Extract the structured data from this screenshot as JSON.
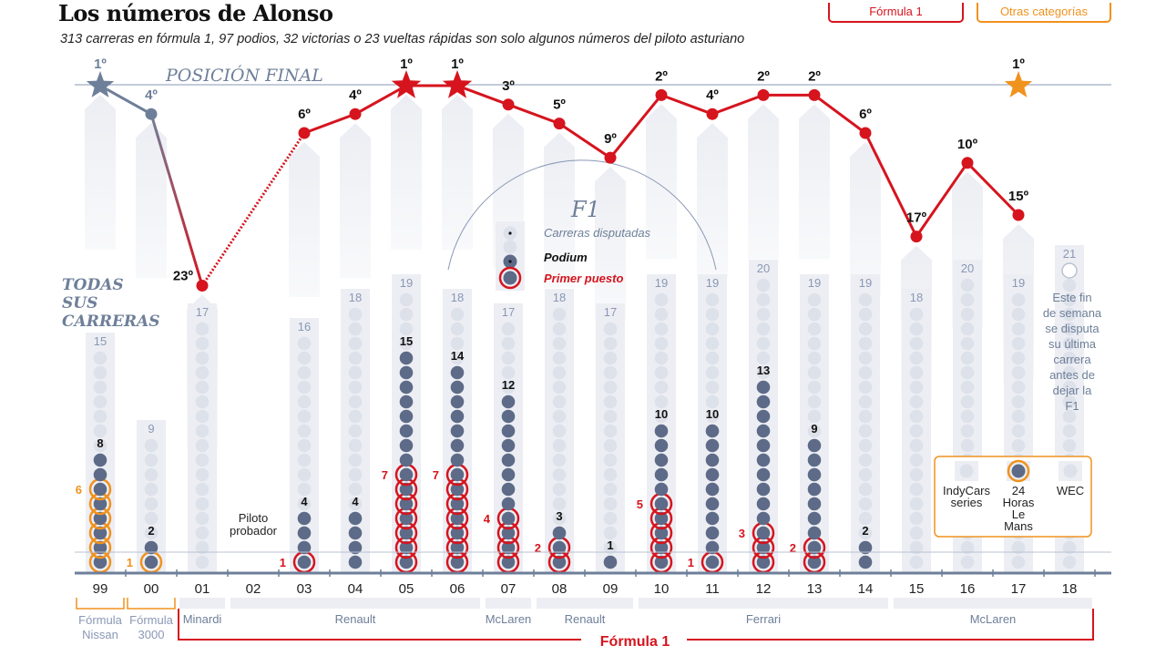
{
  "header": {
    "title": "Los números de Alonso",
    "subtitle": "313 carreras en fórmula 1, 97 podios, 32 victorias o 23 vueltas rápidas son solo algunos números del piloto asturiano",
    "legend_f1": "Fórmula 1",
    "legend_other": "Otras categorías"
  },
  "colors": {
    "f1": "#d6141e",
    "other": "#f0921e",
    "line_other": "#6e7f99",
    "dot": "#5d6b88",
    "dot_light": "#dde1ea",
    "column": "#eceef3",
    "axis": "#6e7f99",
    "section_title": "#6e7f99"
  },
  "chart_data": {
    "type": "line+dot-matrix",
    "final_position_title": "POSICIÓN FINAL",
    "races_title": [
      "TODAS",
      "SUS",
      "CARRERAS"
    ],
    "years": [
      "99",
      "00",
      "01",
      "02",
      "03",
      "04",
      "05",
      "06",
      "07",
      "08",
      "09",
      "10",
      "11",
      "12",
      "13",
      "14",
      "15",
      "16",
      "17",
      "18"
    ],
    "final_position": [
      {
        "year": "99",
        "pos": 1,
        "label": "1º",
        "category": "other",
        "star": true
      },
      {
        "year": "00",
        "pos": 4,
        "label": "4º",
        "category": "other"
      },
      {
        "year": "01",
        "pos": 23,
        "label": "23º",
        "category": "f1"
      },
      {
        "year": "03",
        "pos": 6,
        "label": "6º",
        "category": "f1"
      },
      {
        "year": "04",
        "pos": 4,
        "label": "4º",
        "category": "f1"
      },
      {
        "year": "05",
        "pos": 1,
        "label": "1º",
        "category": "f1",
        "star": true
      },
      {
        "year": "06",
        "pos": 1,
        "label": "1º",
        "category": "f1",
        "star": true
      },
      {
        "year": "07",
        "pos": 3,
        "label": "3º",
        "category": "f1"
      },
      {
        "year": "08",
        "pos": 5,
        "label": "5º",
        "category": "f1"
      },
      {
        "year": "09",
        "pos": 9,
        "label": "9º",
        "category": "f1"
      },
      {
        "year": "10",
        "pos": 2,
        "label": "2º",
        "category": "f1"
      },
      {
        "year": "11",
        "pos": 4,
        "label": "4º",
        "category": "f1"
      },
      {
        "year": "12",
        "pos": 2,
        "label": "2º",
        "category": "f1"
      },
      {
        "year": "13",
        "pos": 2,
        "label": "2º",
        "category": "f1"
      },
      {
        "year": "14",
        "pos": 6,
        "label": "6º",
        "category": "f1"
      },
      {
        "year": "15",
        "pos": 17,
        "label": "17º",
        "category": "f1"
      },
      {
        "year": "16",
        "pos": 10,
        "label": "10º",
        "category": "f1"
      },
      {
        "year": "17",
        "pos": 15,
        "label": "15º",
        "category": "f1"
      },
      {
        "year": "17",
        "pos": 1,
        "label": "1º",
        "category": "other",
        "star": true
      }
    ],
    "seasons": [
      {
        "year": "99",
        "races": 15,
        "podiums": 8,
        "wins": 6,
        "cat": "other"
      },
      {
        "year": "00",
        "races": 9,
        "podiums": 2,
        "wins": 1,
        "cat": "other"
      },
      {
        "year": "01",
        "races": 17,
        "podiums": 0,
        "wins": 0,
        "cat": "f1"
      },
      {
        "year": "02",
        "races": 0,
        "podiums": 0,
        "wins": 0,
        "cat": "f1",
        "note": "Piloto probador"
      },
      {
        "year": "03",
        "races": 16,
        "podiums": 4,
        "wins": 1,
        "cat": "f1"
      },
      {
        "year": "04",
        "races": 18,
        "podiums": 4,
        "wins": 0,
        "cat": "f1"
      },
      {
        "year": "05",
        "races": 19,
        "podiums": 15,
        "wins": 7,
        "cat": "f1"
      },
      {
        "year": "06",
        "races": 18,
        "podiums": 14,
        "wins": 7,
        "cat": "f1"
      },
      {
        "year": "07",
        "races": 17,
        "podiums": 12,
        "wins": 4,
        "cat": "f1"
      },
      {
        "year": "08",
        "races": 18,
        "podiums": 3,
        "wins": 2,
        "cat": "f1"
      },
      {
        "year": "09",
        "races": 17,
        "podiums": 1,
        "wins": 0,
        "cat": "f1"
      },
      {
        "year": "10",
        "races": 19,
        "podiums": 10,
        "wins": 5,
        "cat": "f1"
      },
      {
        "year": "11",
        "races": 19,
        "podiums": 10,
        "wins": 1,
        "cat": "f1"
      },
      {
        "year": "12",
        "races": 20,
        "podiums": 13,
        "wins": 3,
        "cat": "f1"
      },
      {
        "year": "13",
        "races": 19,
        "podiums": 9,
        "wins": 2,
        "cat": "f1"
      },
      {
        "year": "14",
        "races": 19,
        "podiums": 2,
        "wins": 0,
        "cat": "f1"
      },
      {
        "year": "15",
        "races": 18,
        "podiums": 0,
        "wins": 0,
        "cat": "f1"
      },
      {
        "year": "16",
        "races": 20,
        "podiums": 0,
        "wins": 0,
        "cat": "f1"
      },
      {
        "year": "17",
        "races": 19,
        "podiums": 0,
        "wins": 0,
        "cat": "f1"
      },
      {
        "year": "18",
        "races": 21,
        "podiums": 0,
        "wins": 0,
        "cat": "f1",
        "pending": 1
      }
    ],
    "f1_key": {
      "title": "F1",
      "races": "Carreras disputadas",
      "podium": "Podium",
      "win": "Primer puesto"
    },
    "other_categories": {
      "items": [
        "IndyCars series",
        "24 Horas Le Mans",
        "WEC"
      ]
    },
    "note_2018": "Este fin de semana se disputa su última carrera antes de dejar la F1",
    "teams": [
      {
        "name": "Fórmula Nissan",
        "cat": "other",
        "from": "99",
        "to": "99"
      },
      {
        "name": "Fórmula 3000",
        "cat": "other",
        "from": "00",
        "to": "00"
      },
      {
        "name": "Minardi",
        "cat": "f1",
        "from": "01",
        "to": "01"
      },
      {
        "name": "Renault",
        "cat": "f1",
        "from": "02",
        "to": "06"
      },
      {
        "name": "McLaren",
        "cat": "f1",
        "from": "07",
        "to": "07"
      },
      {
        "name": "Renault",
        "cat": "f1",
        "from": "08",
        "to": "09"
      },
      {
        "name": "Ferrari",
        "cat": "f1",
        "from": "10",
        "to": "14"
      },
      {
        "name": "McLaren",
        "cat": "f1",
        "from": "15",
        "to": "18"
      }
    ],
    "f1_bracket_label": "Fórmula 1"
  }
}
